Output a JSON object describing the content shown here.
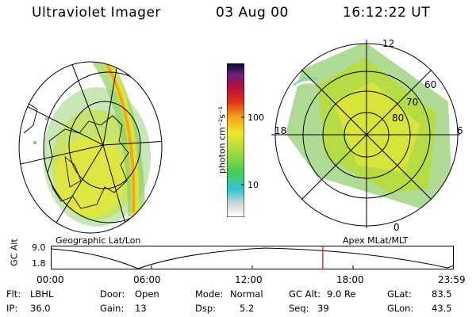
{
  "header": {
    "instrument": "Ultraviolet Imager",
    "date": "03 Aug 00",
    "time": "16:12:22 UT"
  },
  "left_panel": {
    "label": "Geographic Lat/Lon"
  },
  "right_panel": {
    "label": "Apex MLat/MLT",
    "mlt_labels": {
      "top": "12",
      "left": "18",
      "right": "6",
      "bottom": "0"
    },
    "lat_labels": [
      "60",
      "70",
      "80"
    ]
  },
  "colorbar": {
    "unit": "photon cm⁻²s⁻¹",
    "ticks": [
      "100",
      "10"
    ]
  },
  "timeline": {
    "ylabel": "GC Alt",
    "yticks": [
      "9.0",
      "1.8"
    ],
    "xticks": [
      "00:00",
      "06:00",
      "12:00",
      "18:00",
      "23:59"
    ],
    "current_fraction": 0.675,
    "marker_color": "#e00000"
  },
  "info": [
    {
      "label": "Flt:",
      "value": "LBHL"
    },
    {
      "label": "IP:",
      "value": "36.0"
    },
    {
      "label": "Door:",
      "value": "Open"
    },
    {
      "label": "Gain:",
      "value": "13"
    },
    {
      "label": "Mode:",
      "value": "Normal"
    },
    {
      "label": "Dsp:",
      "value": "5.2"
    },
    {
      "label": "GC Alt:",
      "value": "9.0 Re"
    },
    {
      "label": "Seq:",
      "value": "39"
    },
    {
      "label": "GLat:",
      "value": "83.5"
    },
    {
      "label": "GLon:",
      "value": "43.5"
    }
  ]
}
